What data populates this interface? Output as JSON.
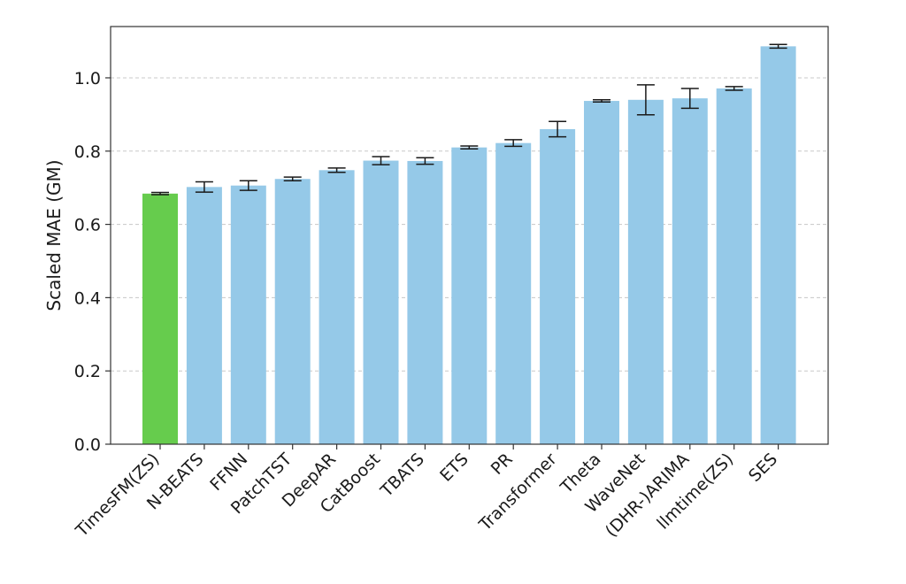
{
  "chart_data": {
    "type": "bar",
    "title": "",
    "xlabel": "",
    "ylabel": "Scaled MAE (GM)",
    "ylim": [
      0,
      1.14
    ],
    "yticks": [
      "0.0",
      "0.2",
      "0.4",
      "0.6",
      "0.8",
      "1.0"
    ],
    "grid": "horizontal dashed",
    "categories": [
      "TimesFM(ZS)",
      "N-BEATS",
      "FFNN",
      "PatchTST",
      "DeepAR",
      "CatBoost",
      "TBATS",
      "ETS",
      "PR",
      "Transformer",
      "Theta",
      "WaveNet",
      "(DHR-)ARIMA",
      "llmtime(ZS)",
      "SES"
    ],
    "values": [
      0.684,
      0.702,
      0.706,
      0.724,
      0.748,
      0.774,
      0.773,
      0.81,
      0.822,
      0.86,
      0.937,
      0.94,
      0.944,
      0.971,
      1.086
    ],
    "errors": [
      0.003,
      0.014,
      0.013,
      0.005,
      0.006,
      0.011,
      0.009,
      0.004,
      0.009,
      0.021,
      0.003,
      0.041,
      0.027,
      0.005,
      0.005
    ],
    "colors": [
      "#66cc4d",
      "#95c9e8",
      "#95c9e8",
      "#95c9e8",
      "#95c9e8",
      "#95c9e8",
      "#95c9e8",
      "#95c9e8",
      "#95c9e8",
      "#95c9e8",
      "#95c9e8",
      "#95c9e8",
      "#95c9e8",
      "#95c9e8",
      "#95c9e8"
    ]
  }
}
